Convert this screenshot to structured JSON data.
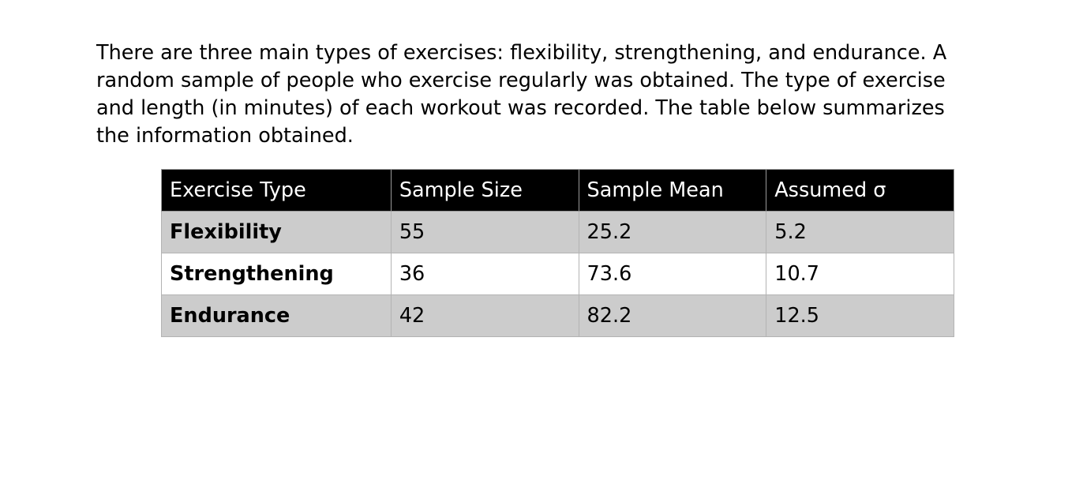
{
  "intro": {
    "lines": [
      "There are three main types of exercises: flexibility, strengthening, and endurance. A",
      "random sample of people who exercise regularly was obtained. The type of exercise",
      "and length (in minutes) of each workout was recorded. The table below summarizes",
      "the information obtained."
    ]
  },
  "table": {
    "headers": [
      "Exercise Type",
      "Sample Size",
      "Sample Mean",
      "Assumed σ"
    ],
    "rows": [
      [
        "Flexibility",
        "55",
        "25.2",
        "5.2"
      ],
      [
        "Strengthening",
        "36",
        "73.6",
        "10.7"
      ],
      [
        "Endurance",
        "42",
        "82.2",
        "12.5"
      ]
    ]
  }
}
